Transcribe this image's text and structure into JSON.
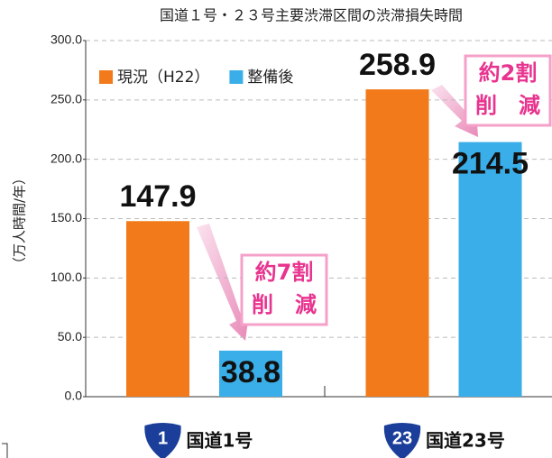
{
  "chart_data": {
    "type": "bar",
    "title": "国道１号・２３号主要渋滞区間の渋滞損失時間",
    "y_label": "（万人時間/年）",
    "categories": [
      "国道1号",
      "国道23号"
    ],
    "category_badges": [
      "1",
      "23"
    ],
    "series": [
      {
        "name": "現況（H22）",
        "color": "#f27a1a",
        "values": [
          147.9,
          258.9
        ]
      },
      {
        "name": "整備後",
        "color": "#3aaee8",
        "values": [
          38.8,
          214.5
        ]
      }
    ],
    "ylim": [
      0,
      300
    ],
    "yticks": [
      {
        "value": 0,
        "label": "0.0"
      },
      {
        "value": 50,
        "label": "50.0"
      },
      {
        "value": 100,
        "label": "100.0"
      },
      {
        "value": 150,
        "label": "150.0"
      },
      {
        "value": 200,
        "label": "200.0"
      },
      {
        "value": 250,
        "label": "250.0"
      },
      {
        "value": 300,
        "label": "300.0"
      }
    ],
    "grid": true,
    "legend": "upper left",
    "annotation_color": "#e8338f",
    "annotations": [
      {
        "lines": [
          "約7割",
          "削　減"
        ]
      },
      {
        "lines": [
          "約2割",
          "削　減"
        ]
      }
    ]
  }
}
